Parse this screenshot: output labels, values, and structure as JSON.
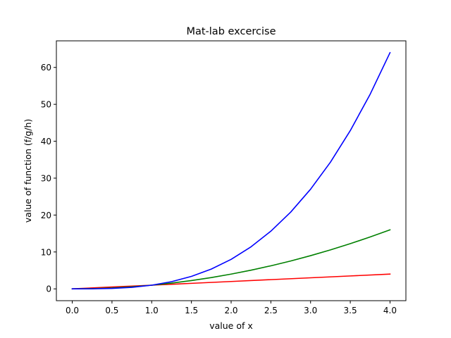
{
  "chart_data": {
    "type": "line",
    "title": "Mat-lab excercise",
    "xlabel": "value of x",
    "ylabel": "value of function (f/g/h)",
    "xlim": [
      -0.2,
      4.2
    ],
    "ylim": [
      -3.2,
      67.2
    ],
    "xticks": [
      0.0,
      0.5,
      1.0,
      1.5,
      2.0,
      2.5,
      3.0,
      3.5,
      4.0
    ],
    "xtick_labels": [
      "0.0",
      "0.5",
      "1.0",
      "1.5",
      "2.0",
      "2.5",
      "3.0",
      "3.5",
      "4.0"
    ],
    "yticks": [
      0,
      10,
      20,
      30,
      40,
      50,
      60
    ],
    "ytick_labels": [
      "0",
      "10",
      "20",
      "30",
      "40",
      "50",
      "60"
    ],
    "grid": false,
    "legend": false,
    "series": [
      {
        "color": "#ff0000",
        "x": [
          0,
          0.5,
          1.0,
          1.5,
          2.0,
          2.5,
          3.0,
          3.5,
          4.0
        ],
        "y": [
          0,
          0.5,
          1.0,
          1.5,
          2.0,
          2.5,
          3.0,
          3.5,
          4.0
        ]
      },
      {
        "color": "#008000",
        "x": [
          0,
          0.25,
          0.5,
          0.75,
          1.0,
          1.25,
          1.5,
          1.75,
          2.0,
          2.25,
          2.5,
          2.75,
          3.0,
          3.25,
          3.5,
          3.75,
          4.0
        ],
        "y": [
          0,
          0.06,
          0.25,
          0.56,
          1.0,
          1.56,
          2.25,
          3.06,
          4.0,
          5.06,
          6.25,
          7.56,
          9.0,
          10.56,
          12.25,
          14.06,
          16.0
        ]
      },
      {
        "color": "#0000ff",
        "x": [
          0,
          0.25,
          0.5,
          0.75,
          1.0,
          1.25,
          1.5,
          1.75,
          2.0,
          2.25,
          2.5,
          2.75,
          3.0,
          3.25,
          3.5,
          3.75,
          4.0
        ],
        "y": [
          0,
          0.02,
          0.13,
          0.42,
          1.0,
          1.95,
          3.38,
          5.36,
          8.0,
          11.39,
          15.63,
          20.8,
          27.0,
          34.33,
          42.88,
          52.73,
          64.0
        ]
      }
    ]
  }
}
